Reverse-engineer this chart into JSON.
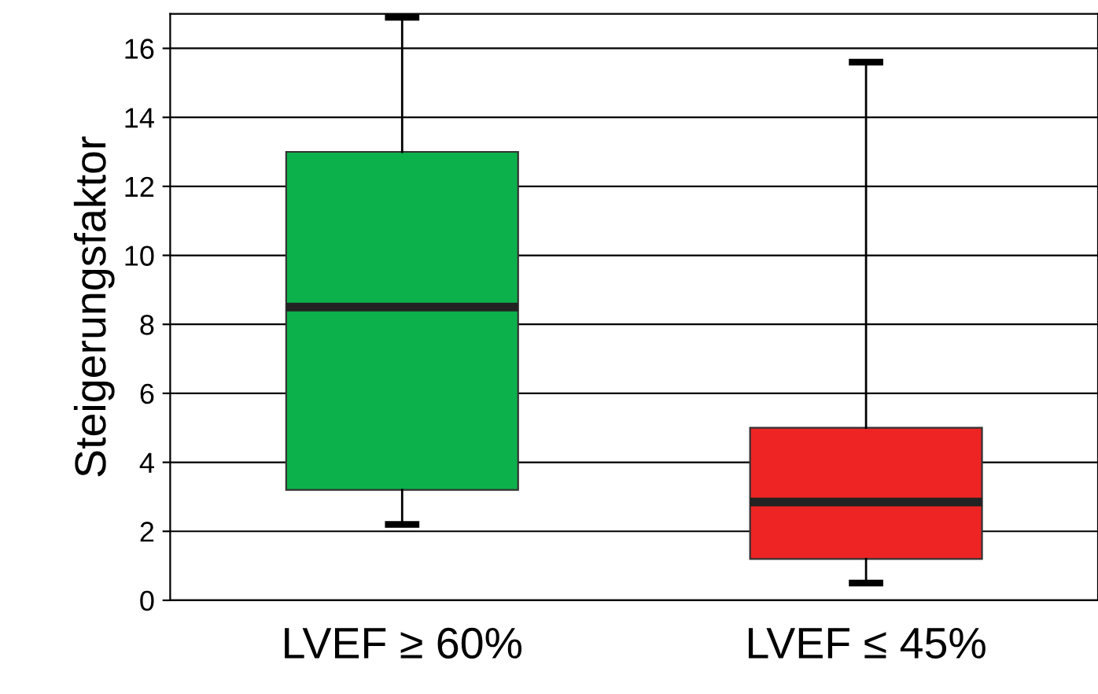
{
  "chart_data": {
    "type": "box",
    "ylabel": "Steigerungsfaktor",
    "categories": [
      "LVEF ≥ 60%",
      "LVEF ≤ 45%"
    ],
    "boxes": [
      {
        "low": 2.2,
        "q1": 3.2,
        "median": 8.5,
        "q3": 13,
        "high": 16.9
      },
      {
        "low": 0.5,
        "q1": 1.2,
        "median": 2.85,
        "q3": 5,
        "high": 15.6
      }
    ],
    "colors": [
      "#0db14b",
      "#ee2424"
    ],
    "ylim": [
      0,
      17
    ],
    "yticks": [
      0,
      2,
      4,
      6,
      8,
      10,
      12,
      14,
      16
    ],
    "grid": "y",
    "legend": false
  }
}
